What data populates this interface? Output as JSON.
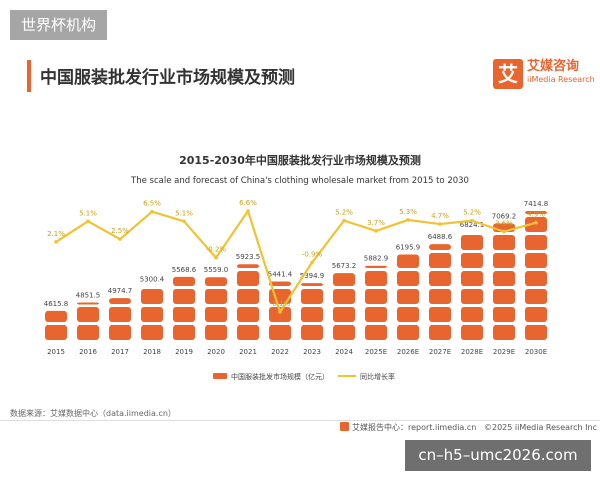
{
  "top_badge": "世界杯机构",
  "header": {
    "title": "中国服装批发行业市场规模及预测"
  },
  "brand": {
    "mark": "艾",
    "name": "艾媒咨询",
    "sub": "iiMedia Research"
  },
  "source": "数据来源：艾媒数据中心（data.iimedia.cn）",
  "footer": {
    "report": "艾媒报告中心：report.iimedia.cn",
    "copyright": "©2025  iiMedia Research  Inc"
  },
  "watermark": "cn–h5–umc2026.com",
  "colors": {
    "accent": "#e8652f",
    "line": "#f1c232"
  },
  "chart_data": {
    "type": "bar",
    "title": "2015-2030年中国服装批发行业市场规模及预测",
    "subtitle": "The scale and forecast of China's clothing wholesale market from 2015 to 2030",
    "categories": [
      "2015",
      "2016",
      "2017",
      "2018",
      "2019",
      "2020",
      "2021",
      "2022",
      "2023",
      "2024",
      "2025E",
      "2026E",
      "2027E",
      "2028E",
      "2029E",
      "2030E"
    ],
    "series": [
      {
        "name": "中国服装批发市场规模（亿元）",
        "type": "bar",
        "values": [
          4615.8,
          4851.5,
          4974.7,
          5300.4,
          5568.6,
          5559.0,
          5923.5,
          5441.4,
          5394.9,
          5673.2,
          5882.9,
          6195.9,
          6488.6,
          6824.1,
          7069.2,
          7414.8
        ],
        "labels": [
          "4615.8",
          "4851.5",
          "4974.7",
          "5300.4",
          "5568.6",
          "5559.0",
          "5923.5",
          "5441.4",
          "5394.9",
          "5673.2",
          "5882.9",
          "6195.9",
          "6488.6",
          "6824.1",
          "7069.2",
          "7414.8"
        ]
      },
      {
        "name": "同比增长率",
        "type": "line",
        "values": [
          2.1,
          5.1,
          2.5,
          6.5,
          5.1,
          -0.2,
          6.6,
          -8.1,
          -0.9,
          5.2,
          3.7,
          5.3,
          4.7,
          5.2,
          3.6,
          4.9
        ],
        "labels": [
          "2.1%",
          "5.1%",
          "2.5%",
          "6.5%",
          "5.1%",
          "-0.2%",
          "6.6%",
          "-8.1%",
          "-0.9%",
          "5.2%",
          "3.7%",
          "5.3%",
          "4.7%",
          "5.2%",
          "3.6%",
          "4.9%"
        ]
      }
    ],
    "legend_position": "bottom"
  }
}
